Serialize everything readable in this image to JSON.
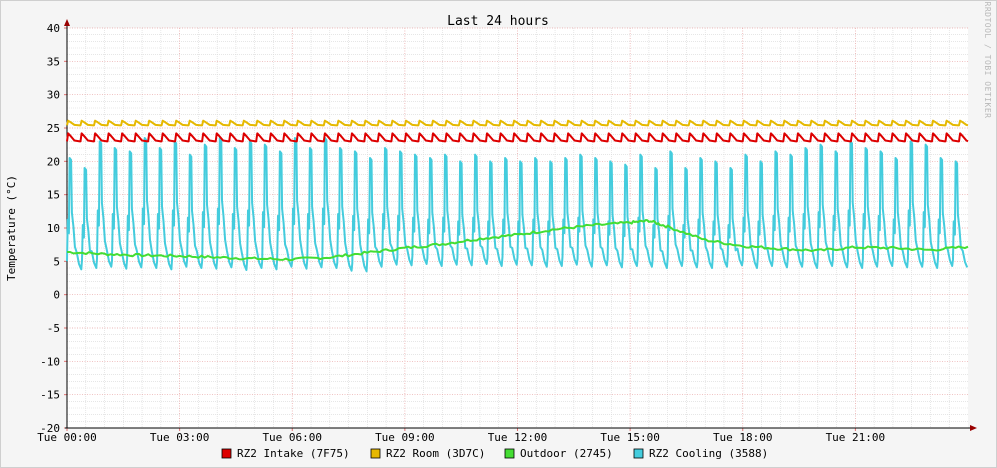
{
  "chart_data": {
    "type": "line",
    "title": "Last 24 hours",
    "ylabel": "Temperature (°C)",
    "xlabel": "",
    "watermark": "RRDTOOL / TOBI OETIKER",
    "ylim": [
      -20,
      40
    ],
    "y_ticks": [
      40,
      35,
      30,
      25,
      20,
      15,
      10,
      5,
      0,
      -5,
      -10,
      -15,
      -20
    ],
    "x_range_hours": [
      0,
      24
    ],
    "x_ticks": [
      {
        "hour": 0,
        "label": "Tue 00:00"
      },
      {
        "hour": 3,
        "label": "Tue 03:00"
      },
      {
        "hour": 6,
        "label": "Tue 06:00"
      },
      {
        "hour": 9,
        "label": "Tue 09:00"
      },
      {
        "hour": 12,
        "label": "Tue 12:00"
      },
      {
        "hour": 15,
        "label": "Tue 15:00"
      },
      {
        "hour": 18,
        "label": "Tue 18:00"
      },
      {
        "hour": 21,
        "label": "Tue 21:00"
      }
    ],
    "grid": true,
    "legend_position": "bottom",
    "series": [
      {
        "name": "RZ2 Intake (7F75)",
        "color": "#dd0000",
        "baseline": 23.0,
        "peak": 24.2,
        "cycle_hours": 0.36
      },
      {
        "name": "RZ2 Room (3D7C)",
        "color": "#e6b800",
        "baseline": 25.4,
        "peak": 26.1,
        "cycle_hours": 0.36
      },
      {
        "name": "Outdoor (2745)",
        "color": "#44dd33",
        "x": [
          0,
          1,
          2,
          3,
          4,
          5,
          6,
          7,
          8,
          9,
          10,
          11,
          12,
          13,
          14,
          15,
          15.5,
          16,
          17,
          18,
          19,
          20,
          21,
          22,
          23,
          24
        ],
        "y": [
          6.4,
          6.1,
          5.9,
          5.8,
          5.6,
          5.4,
          5.3,
          5.6,
          6.3,
          7.0,
          7.6,
          8.4,
          9.0,
          9.8,
          10.4,
          10.8,
          11.1,
          10.2,
          8.2,
          7.3,
          6.9,
          6.6,
          7.1,
          7.0,
          6.7,
          7.2
        ]
      },
      {
        "name": "RZ2 Cooling (3588)",
        "color": "#44ccdd",
        "x": [
          0.0,
          0.4,
          0.8,
          1.2,
          1.6,
          2.0,
          2.4,
          2.8,
          3.2,
          3.6,
          4.0,
          4.4,
          4.8,
          5.2,
          5.6,
          6.0,
          6.4,
          6.8,
          7.2,
          7.6,
          8.0,
          8.4,
          8.8,
          9.2,
          9.6,
          10.0,
          10.4,
          10.8,
          11.2,
          11.6,
          12.0,
          12.4,
          12.8,
          13.2,
          13.6,
          14.0,
          14.4,
          14.8,
          15.2,
          15.6,
          16.0,
          16.4,
          16.8,
          17.2,
          17.6,
          18.0,
          18.4,
          18.8,
          19.2,
          19.6,
          20.0,
          20.4,
          20.8,
          21.2,
          21.6,
          22.0,
          22.4,
          22.8,
          23.2,
          23.6
        ],
        "peaks": [
          20.5,
          19.0,
          23.0,
          22.0,
          21.5,
          23.5,
          22.0,
          23.0,
          21.0,
          22.5,
          23.5,
          22.0,
          23.0,
          22.5,
          21.5,
          23.5,
          22.0,
          23.5,
          22.0,
          21.5,
          20.5,
          22.0,
          21.5,
          21.0,
          20.5,
          21.0,
          20.0,
          21.0,
          20.0,
          20.5,
          20.0,
          20.5,
          20.0,
          20.5,
          21.0,
          20.5,
          20.0,
          19.5,
          21.0,
          19.0,
          21.5,
          19.0,
          20.5,
          20.0,
          19.0,
          21.0,
          20.0,
          21.5,
          21.0,
          22.0,
          22.5,
          21.5,
          23.0,
          22.0,
          21.5,
          20.5,
          23.0,
          22.5,
          20.5,
          20.0
        ],
        "troughs": [
          3.8,
          4.0,
          4.2,
          3.9,
          4.1,
          4.0,
          3.8,
          4.2,
          4.0,
          3.9,
          4.1,
          3.7,
          4.0,
          3.8,
          4.2,
          3.9,
          4.1,
          4.0,
          3.6,
          3.5,
          4.2,
          4.5,
          4.4,
          4.6,
          4.3,
          4.5,
          4.4,
          4.6,
          4.3,
          4.5,
          4.4,
          4.2,
          4.3,
          4.5,
          4.2,
          4.4,
          4.1,
          4.3,
          4.2,
          4.0,
          4.3,
          4.1,
          4.0,
          4.2,
          4.4,
          4.0,
          4.3,
          4.1,
          4.2,
          4.0,
          4.3,
          4.1,
          4.0,
          4.2,
          4.3,
          4.1,
          4.2,
          4.0,
          4.3,
          4.1
        ]
      }
    ]
  }
}
